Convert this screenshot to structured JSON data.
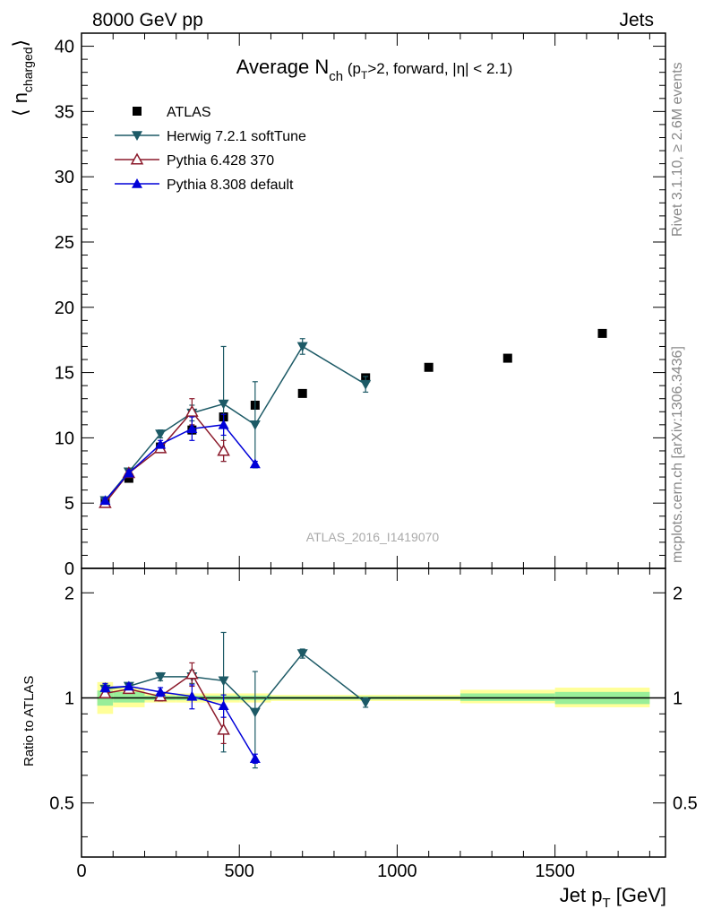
{
  "header": {
    "left": "8000 GeV pp",
    "right": "Jets"
  },
  "side_labels": {
    "rivet": "Rivet 3.1.10, ≥ 2.6M events",
    "mcplots": "mcplots.cern.ch [arXiv:1306.3436]"
  },
  "watermark": "ATLAS_2016_I1419070",
  "chart_data": {
    "type": "scatter",
    "title": {
      "prefix": "Average N",
      "sub": "ch",
      "detail_a": "(p",
      "detail_sub": "T",
      "detail_b": ">2, forward, |η| < 2.1)"
    },
    "xlabel": {
      "main": "Jet p",
      "sub": "T",
      "unit": "[GeV]"
    },
    "ylabel": {
      "left": "⟨ n",
      "sub": "charged",
      "right": "⟩"
    },
    "ratio_ylabel": "Ratio to ATLAS",
    "xlim": [
      0,
      1850
    ],
    "ylim_main": [
      0,
      41
    ],
    "ylim_ratio": [
      0.35,
      2.35
    ],
    "main_yticks": [
      0,
      5,
      10,
      15,
      20,
      25,
      30,
      35,
      40
    ],
    "ratio_yticks": [
      0.5,
      1,
      2
    ],
    "xticks": [
      0,
      500,
      1000,
      1500
    ],
    "legend_position": "top-left",
    "series": [
      {
        "name": "ATLAS",
        "marker": "square",
        "color": "#000000",
        "points": [
          {
            "x": 75,
            "y": 5.1,
            "err": 0.2
          },
          {
            "x": 150,
            "y": 6.9,
            "err": 0.2
          },
          {
            "x": 250,
            "y": 9.3,
            "err": 0.3
          },
          {
            "x": 350,
            "y": 10.6,
            "err": 0.3
          },
          {
            "x": 450,
            "y": 11.6,
            "err": 0.3
          },
          {
            "x": 550,
            "y": 12.5,
            "err": 0.3
          },
          {
            "x": 700,
            "y": 13.4,
            "err": 0.2
          },
          {
            "x": 900,
            "y": 14.6,
            "err": 0.2
          },
          {
            "x": 1100,
            "y": 15.4,
            "err": 0.2
          },
          {
            "x": 1350,
            "y": 16.1,
            "err": 0.2
          },
          {
            "x": 1650,
            "y": 18.0,
            "err": 0.2
          }
        ]
      },
      {
        "name": "Herwig 7.2.1 softTune",
        "marker": "triangle-down",
        "color": "#1d5a66",
        "points": [
          {
            "x": 75,
            "y": 5.2,
            "err": 0.2
          },
          {
            "x": 150,
            "y": 7.4,
            "err": 0.2
          },
          {
            "x": 250,
            "y": 10.3,
            "err": 0.3
          },
          {
            "x": 350,
            "y": 11.9,
            "err": 0.6
          },
          {
            "x": 450,
            "y": 12.6,
            "err": 4.4
          },
          {
            "x": 550,
            "y": 11.0,
            "err": 3.3
          },
          {
            "x": 700,
            "y": 17.0,
            "err": 0.6
          },
          {
            "x": 900,
            "y": 14.1,
            "err": 0.6
          }
        ]
      },
      {
        "name": "Pythia 6.428 370",
        "marker": "triangle-up-open",
        "color": "#8b1a2b",
        "points": [
          {
            "x": 75,
            "y": 5.0,
            "err": 0.2
          },
          {
            "x": 150,
            "y": 7.3,
            "err": 0.2
          },
          {
            "x": 250,
            "y": 9.2,
            "err": 0.3
          },
          {
            "x": 350,
            "y": 12.0,
            "err": 1.0
          },
          {
            "x": 450,
            "y": 9.0,
            "err": 0.8
          }
        ]
      },
      {
        "name": "Pythia 8.308 default",
        "marker": "triangle-up",
        "color": "#0000d8",
        "points": [
          {
            "x": 75,
            "y": 5.2,
            "err": 0.2
          },
          {
            "x": 150,
            "y": 7.3,
            "err": 0.2
          },
          {
            "x": 250,
            "y": 9.5,
            "err": 0.3
          },
          {
            "x": 350,
            "y": 10.7,
            "err": 0.9
          },
          {
            "x": 450,
            "y": 11.0,
            "err": 0.8
          },
          {
            "x": 550,
            "y": 8.0,
            "err": 0.2
          }
        ]
      }
    ],
    "ratio_bands": [
      {
        "x0": 50,
        "x1": 100,
        "inner": [
          0.95,
          1.05
        ],
        "outer": [
          0.9,
          1.11
        ]
      },
      {
        "x0": 100,
        "x1": 200,
        "inner": [
          0.97,
          1.04
        ],
        "outer": [
          0.94,
          1.07
        ]
      },
      {
        "x0": 200,
        "x1": 300,
        "inner": [
          0.985,
          1.015
        ],
        "outer": [
          0.97,
          1.03
        ]
      },
      {
        "x0": 300,
        "x1": 400,
        "inner": [
          0.985,
          1.015
        ],
        "outer": [
          0.97,
          1.03
        ]
      },
      {
        "x0": 400,
        "x1": 500,
        "inner": [
          0.985,
          1.015
        ],
        "outer": [
          0.97,
          1.03
        ]
      },
      {
        "x0": 500,
        "x1": 600,
        "inner": [
          0.985,
          1.015
        ],
        "outer": [
          0.97,
          1.03
        ]
      },
      {
        "x0": 600,
        "x1": 800,
        "inner": [
          0.99,
          1.01
        ],
        "outer": [
          0.98,
          1.02
        ]
      },
      {
        "x0": 800,
        "x1": 1000,
        "inner": [
          0.99,
          1.01
        ],
        "outer": [
          0.98,
          1.02
        ]
      },
      {
        "x0": 1000,
        "x1": 1200,
        "inner": [
          0.99,
          1.01
        ],
        "outer": [
          0.98,
          1.02
        ]
      },
      {
        "x0": 1200,
        "x1": 1500,
        "inner": [
          0.98,
          1.03
        ],
        "outer": [
          0.965,
          1.055
        ]
      },
      {
        "x0": 1500,
        "x1": 1800,
        "inner": [
          0.96,
          1.04
        ],
        "outer": [
          0.94,
          1.07
        ]
      }
    ],
    "ratio_series": [
      {
        "name": "Herwig 7.2.1 softTune",
        "points": [
          {
            "x": 75,
            "y": 1.06,
            "err": 0.03
          },
          {
            "x": 150,
            "y": 1.08,
            "err": 0.02
          },
          {
            "x": 250,
            "y": 1.15,
            "err": 0.03
          },
          {
            "x": 350,
            "y": 1.15,
            "err": 0.05
          },
          {
            "x": 450,
            "y": 1.12,
            "err": 0.42
          },
          {
            "x": 550,
            "y": 0.91,
            "err": 0.28
          },
          {
            "x": 700,
            "y": 1.34,
            "err": 0.04
          },
          {
            "x": 900,
            "y": 0.97,
            "err": 0.03
          }
        ]
      },
      {
        "name": "Pythia 6.428 370",
        "points": [
          {
            "x": 75,
            "y": 1.03,
            "err": 0.03
          },
          {
            "x": 150,
            "y": 1.06,
            "err": 0.02
          },
          {
            "x": 250,
            "y": 1.01,
            "err": 0.03
          },
          {
            "x": 350,
            "y": 1.17,
            "err": 0.09
          },
          {
            "x": 450,
            "y": 0.81,
            "err": 0.07
          }
        ]
      },
      {
        "name": "Pythia 8.308 default",
        "points": [
          {
            "x": 75,
            "y": 1.07,
            "err": 0.03
          },
          {
            "x": 150,
            "y": 1.08,
            "err": 0.02
          },
          {
            "x": 250,
            "y": 1.04,
            "err": 0.03
          },
          {
            "x": 350,
            "y": 1.01,
            "err": 0.08
          },
          {
            "x": 450,
            "y": 0.95,
            "err": 0.07
          },
          {
            "x": 550,
            "y": 0.67,
            "err": 0.02
          }
        ]
      }
    ]
  }
}
